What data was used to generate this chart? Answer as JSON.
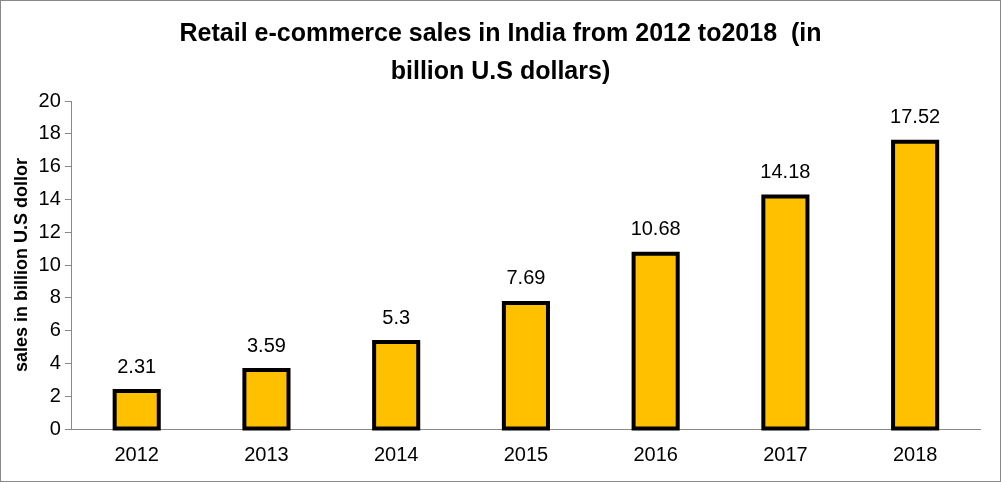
{
  "chart_data": {
    "type": "bar",
    "title": "Retail e-commerce sales in India from 2012 to2018  (in billion U.S dollars)",
    "ylabel": "sales in billion U.S dollor",
    "categories": [
      "2012",
      "2013",
      "2014",
      "2015",
      "2016",
      "2017",
      "2018"
    ],
    "values": [
      2.31,
      3.59,
      5.3,
      7.69,
      10.68,
      14.18,
      17.52
    ],
    "color": "#ffc000",
    "ylim": [
      0,
      20
    ],
    "yticks": [
      0,
      2,
      4,
      6,
      8,
      10,
      12,
      14,
      16,
      18,
      20
    ],
    "data_labels": true,
    "legend": false
  }
}
